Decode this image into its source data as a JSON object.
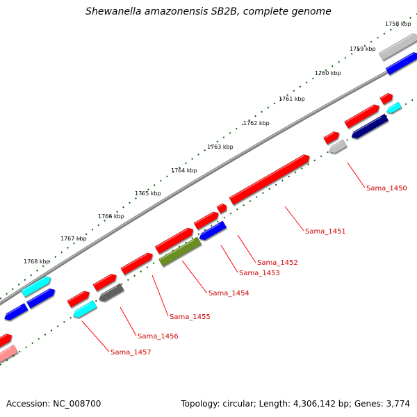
{
  "title": "Shewanella amazonensis SB2B, complete genome",
  "footer": {
    "accession": "Accession: NC_008700",
    "stats": "Topology: circular; Length: 4,306,142 bp; Genes: 3,774"
  },
  "tick_labels": [
    "1758 kbp",
    "1759 kbp",
    "1760 kbp",
    "1761 kbp",
    "1762 kbp",
    "1763 kbp",
    "1764 kbp",
    "1765 kbp",
    "1766 kbp",
    "1767 kbp",
    "1768 kbp"
  ],
  "gene_labels": [
    "Sama_1450",
    "Sama_1451",
    "Sama_1452",
    "Sama_1453",
    "Sama_1454",
    "Sama_1455",
    "Sama_1456",
    "Sama_1457"
  ],
  "colors": {
    "forward_cds": "#ff0000",
    "blue": "#0000ff",
    "navy": "#000080",
    "cyan": "#00ffff",
    "grey": "#c0c0c0",
    "dark_grey": "#606060",
    "olive": "#6b8e23",
    "pink": "#ff9090",
    "backbone": "#808080",
    "tick": "#006400",
    "label": "#cc0000"
  }
}
